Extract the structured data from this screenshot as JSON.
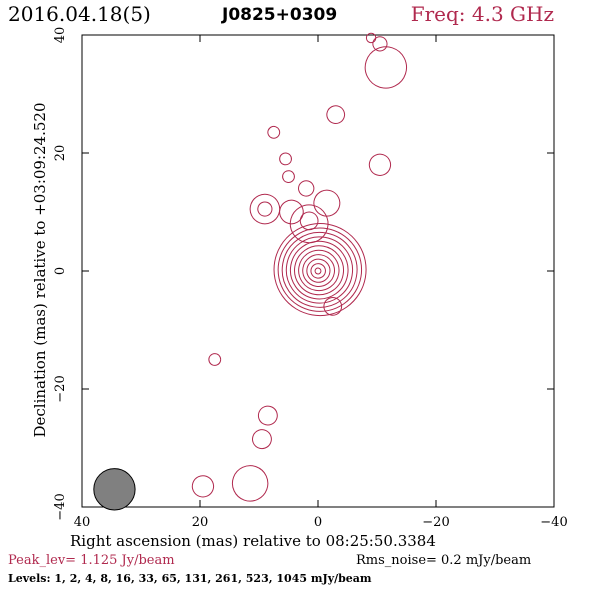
{
  "header": {
    "date": "2016.04.18(5)",
    "source": "J0825+0309",
    "freq": "Freq: 4.3 GHz"
  },
  "axes": {
    "xlabel": "Right ascension (mas) relative to 08:25:50.3384",
    "ylabel": "Declination (mas) relative to +03:09:24.520",
    "x_ticks": [
      "40",
      "20",
      "0",
      "−20",
      "−40"
    ],
    "y_ticks": [
      "−40",
      "−20",
      "0",
      "20",
      "40"
    ]
  },
  "footer": {
    "peak": "Peak_lev=  1.125 Jy/beam",
    "rms": "Rms_noise=  0.2 mJy/beam",
    "levels": "Levels:   1,    2,    4,    8,   16,   33,   65,  131,  261,  523,  1045 mJy/beam"
  },
  "colors": {
    "contour": "#b0294e",
    "beam": "#808080"
  },
  "chart_data": {
    "type": "contour",
    "xlim": [
      40,
      -40
    ],
    "ylim": [
      -40,
      40
    ],
    "beam": {
      "x": 34.5,
      "y": -37,
      "major_mas": 3.5,
      "minor_mas": 1.5,
      "pa_deg": 0
    },
    "levels_mJy": [
      1,
      2,
      4,
      8,
      16,
      33,
      65,
      131,
      261,
      523,
      1045
    ],
    "core": {
      "x": 0,
      "y": 0,
      "n_rings": 11,
      "max_rx": 3.0,
      "max_ry": 7.8,
      "min_rx": 0.3,
      "min_ry": 0.5,
      "tilt_deg": 10
    },
    "blobs": [
      {
        "x": 9.0,
        "y": 10.5,
        "rx": 1.2,
        "ry": 2.5,
        "rot": 20
      },
      {
        "x": 9.0,
        "y": 10.5,
        "rx": 0.5,
        "ry": 1.2,
        "rot": 20
      },
      {
        "x": 4.5,
        "y": 10.0,
        "rx": 1.0,
        "ry": 2.0,
        "rot": 15
      },
      {
        "x": 1.5,
        "y": 8.0,
        "rx": 1.8,
        "ry": 3.2,
        "rot": 15
      },
      {
        "x": 1.5,
        "y": 8.5,
        "rx": 0.9,
        "ry": 1.5,
        "rot": 15
      },
      {
        "x": -1.5,
        "y": 11.5,
        "rx": 0.6,
        "ry": 2.2,
        "rot": 20
      },
      {
        "x": 2.0,
        "y": 14.0,
        "rx": 0.5,
        "ry": 1.3,
        "rot": 15
      },
      {
        "x": 5.0,
        "y": 16.0,
        "rx": 0.4,
        "ry": 1.0,
        "rot": 10
      },
      {
        "x": 7.5,
        "y": 23.5,
        "rx": 0.4,
        "ry": 1.0,
        "rot": 20
      },
      {
        "x": 5.5,
        "y": 19.0,
        "rx": 0.35,
        "ry": 1.0,
        "rot": 10
      },
      {
        "x": -3.0,
        "y": 26.5,
        "rx": 0.5,
        "ry": 1.5,
        "rot": 20
      },
      {
        "x": -10.5,
        "y": 18.0,
        "rx": 0.6,
        "ry": 1.8,
        "rot": 20
      },
      {
        "x": -11.5,
        "y": 34.5,
        "rx": 0.6,
        "ry": 3.5,
        "rot": 18
      },
      {
        "x": -10.5,
        "y": 38.5,
        "rx": 0.5,
        "ry": 1.2,
        "rot": 20
      },
      {
        "x": -9.0,
        "y": 39.5,
        "rx": 0.4,
        "ry": 0.8,
        "rot": 20
      },
      {
        "x": 17.5,
        "y": -15.0,
        "rx": 0.3,
        "ry": 1.0,
        "rot": 20
      },
      {
        "x": 8.5,
        "y": -24.5,
        "rx": 0.4,
        "ry": 1.6,
        "rot": 25
      },
      {
        "x": 9.5,
        "y": -28.5,
        "rx": 0.4,
        "ry": 1.6,
        "rot": 25
      },
      {
        "x": 19.5,
        "y": -36.5,
        "rx": 0.4,
        "ry": 1.8,
        "rot": 20
      },
      {
        "x": 11.5,
        "y": -36.0,
        "rx": 0.7,
        "ry": 3.0,
        "rot": 20
      },
      {
        "x": -2.5,
        "y": -6.0,
        "rx": 0.6,
        "ry": 1.5,
        "rot": 20
      }
    ]
  }
}
